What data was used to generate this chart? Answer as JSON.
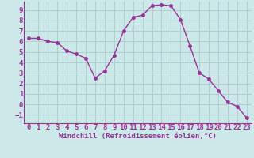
{
  "x": [
    0,
    1,
    2,
    3,
    4,
    5,
    6,
    7,
    8,
    9,
    10,
    11,
    12,
    13,
    14,
    15,
    16,
    17,
    18,
    19,
    20,
    21,
    22,
    23
  ],
  "y": [
    6.3,
    6.3,
    6.0,
    5.9,
    5.1,
    4.8,
    4.4,
    2.5,
    3.2,
    4.7,
    7.0,
    8.3,
    8.5,
    9.4,
    9.5,
    9.4,
    8.1,
    5.6,
    3.0,
    2.4,
    1.3,
    0.2,
    -0.2,
    -1.3
  ],
  "line_color": "#993399",
  "marker_color": "#993399",
  "bg_color": "#cce8e8",
  "grid_color": "#aacccc",
  "xlabel": "Windchill (Refroidissement éolien,°C)",
  "xlim": [
    -0.5,
    23.5
  ],
  "ylim": [
    -1.8,
    9.8
  ],
  "yticks": [
    -1,
    0,
    1,
    2,
    3,
    4,
    5,
    6,
    7,
    8,
    9
  ],
  "xticks": [
    0,
    1,
    2,
    3,
    4,
    5,
    6,
    7,
    8,
    9,
    10,
    11,
    12,
    13,
    14,
    15,
    16,
    17,
    18,
    19,
    20,
    21,
    22,
    23
  ],
  "tick_color": "#993399",
  "label_color": "#993399",
  "spine_color": "#993399",
  "font_size": 6.5,
  "marker_size": 2.5,
  "line_width": 1.0
}
